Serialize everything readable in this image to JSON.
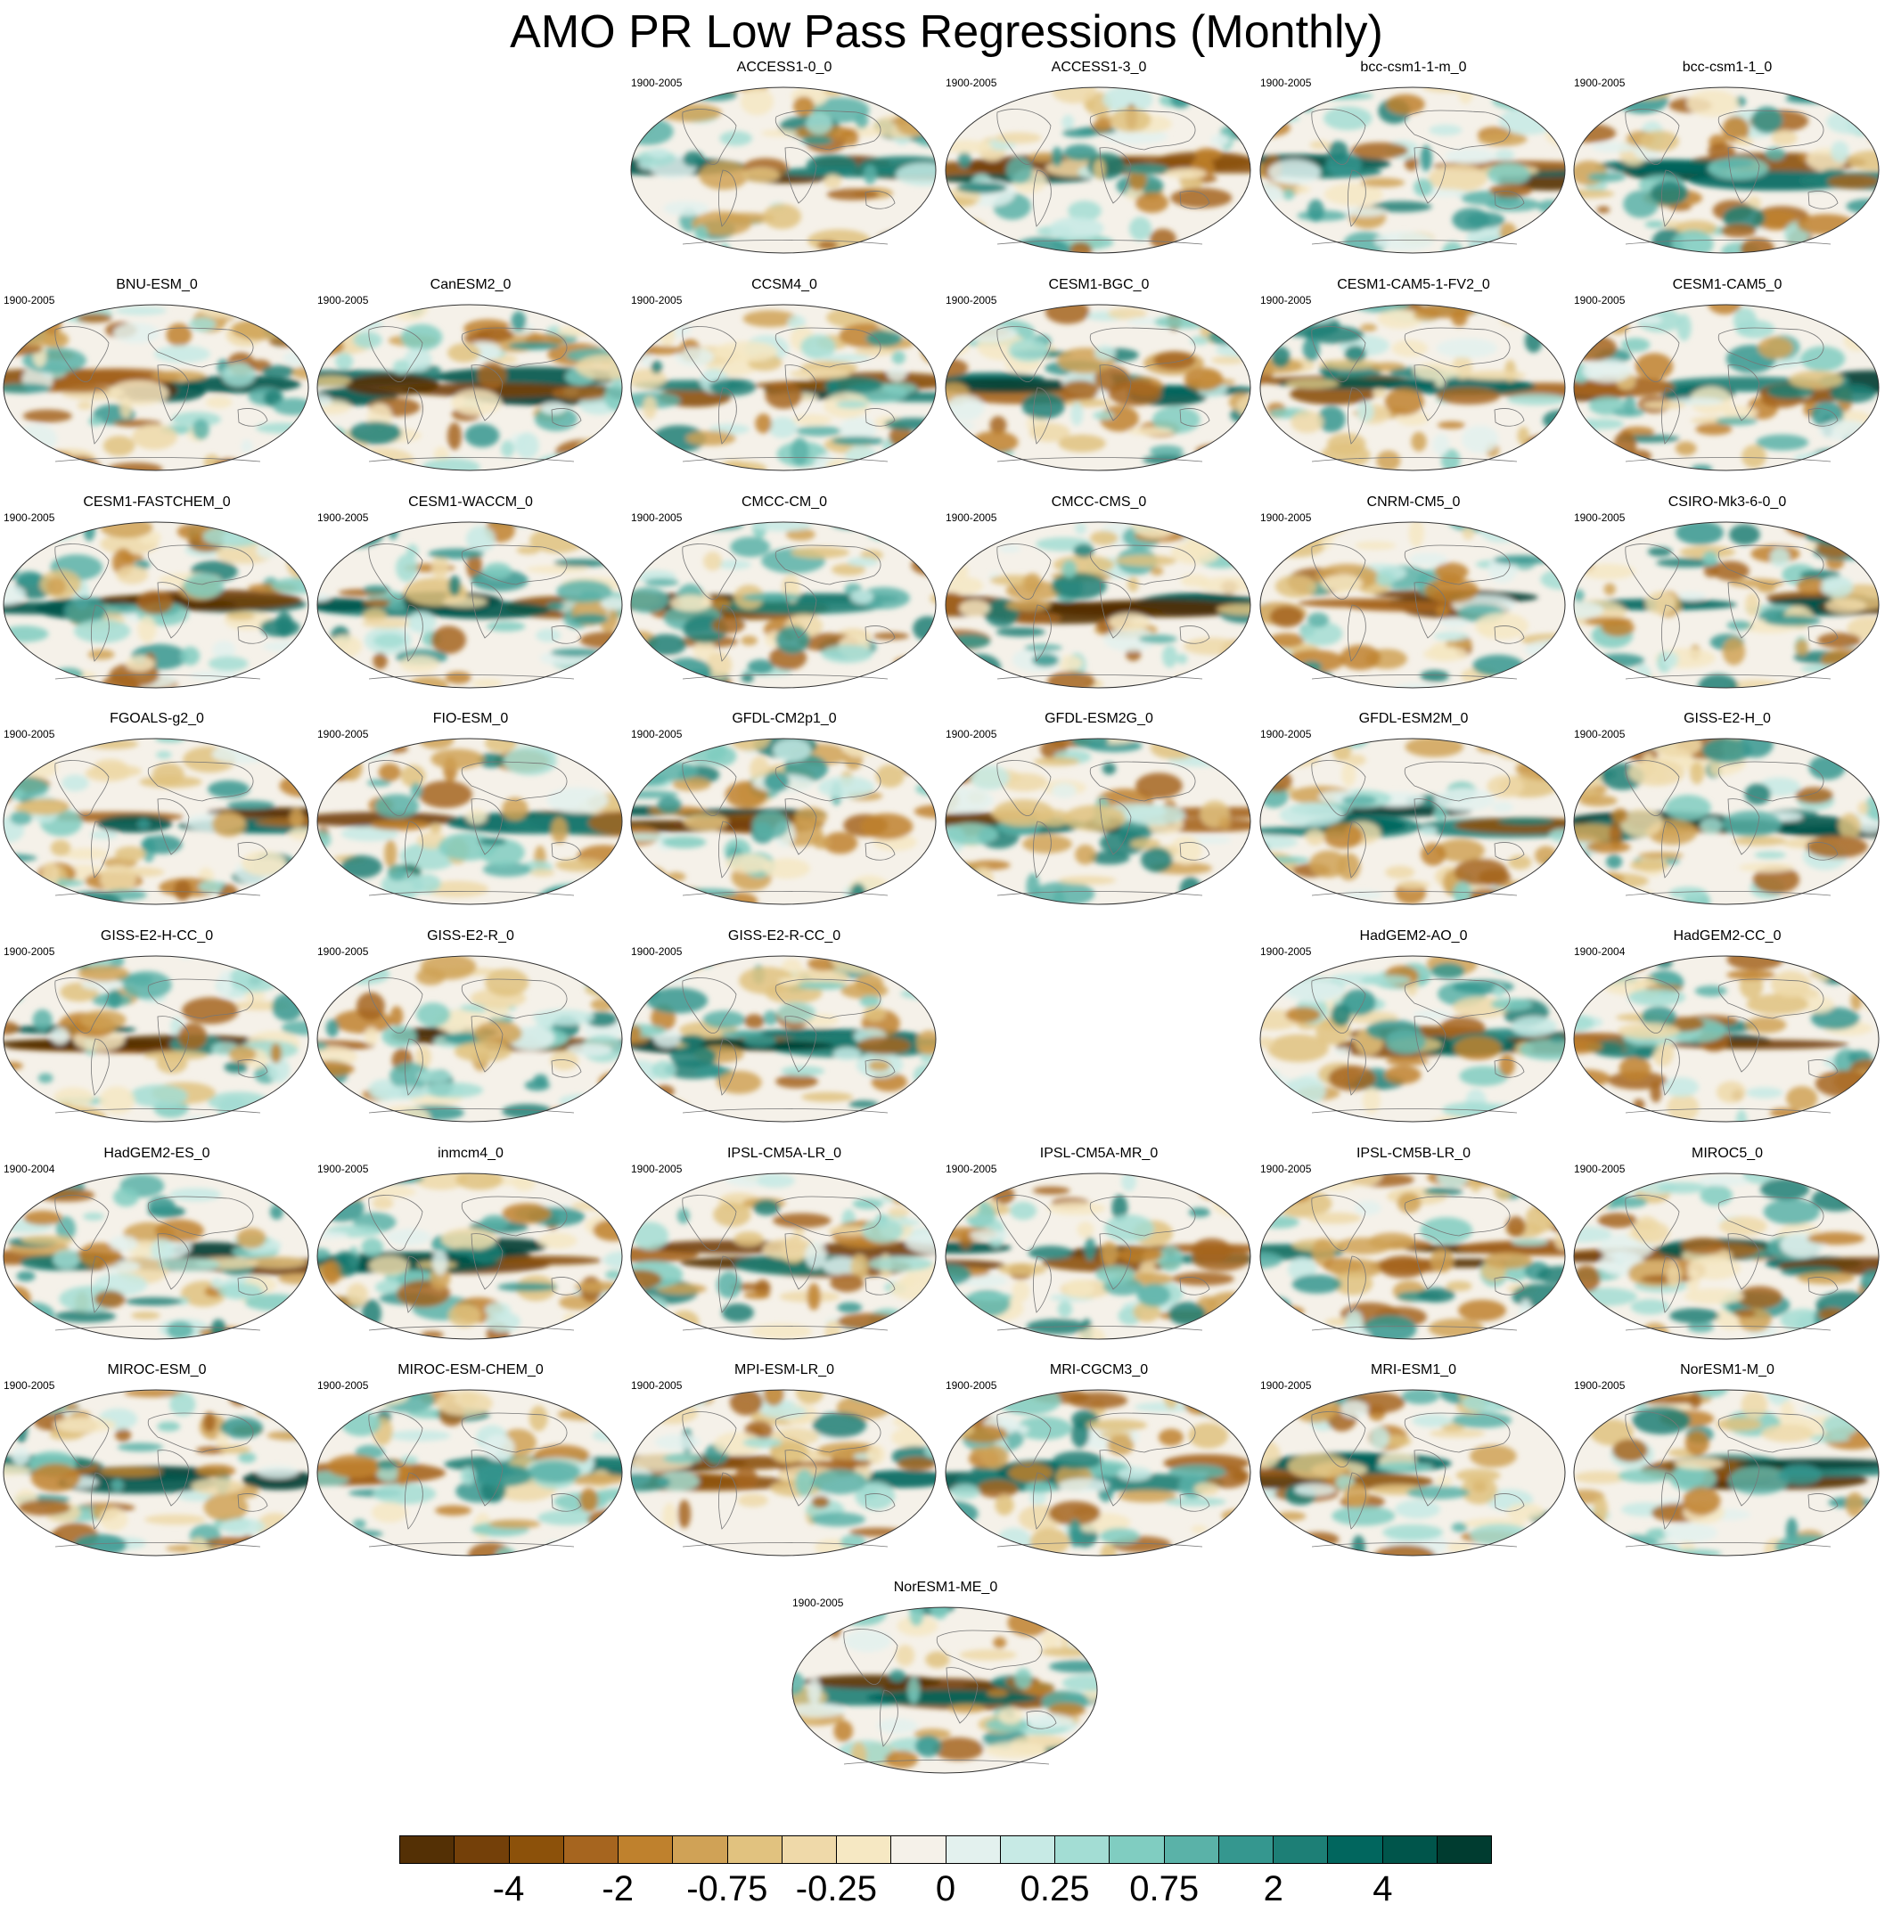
{
  "title": "AMO PR Low Pass Regressions (Monthly)",
  "colorbar": {
    "colors": [
      "#543005",
      "#744009",
      "#8c510a",
      "#a6651f",
      "#bf812d",
      "#d0a256",
      "#e1c27f",
      "#efd9a9",
      "#f6e8c3",
      "#f5f1e9",
      "#e3f1ee",
      "#c7eae5",
      "#a3ddd4",
      "#80cdc1",
      "#5ab2a8",
      "#35978f",
      "#1d7f76",
      "#01665e",
      "#00554b",
      "#003c30"
    ],
    "tick_labels": [
      "-4",
      "-2",
      "-0.75",
      "-0.25",
      "0",
      "0.25",
      "0.75",
      "2",
      "4"
    ]
  },
  "panels": [
    {
      "title": "ACCESS1-0_0",
      "years": "1900-2005"
    },
    {
      "title": "ACCESS1-3_0",
      "years": "1900-2005"
    },
    {
      "title": "bcc-csm1-1-m_0",
      "years": "1900-2005"
    },
    {
      "title": "bcc-csm1-1_0",
      "years": "1900-2005"
    },
    {
      "title": "BNU-ESM_0",
      "years": "1900-2005"
    },
    {
      "title": "CanESM2_0",
      "years": "1900-2005"
    },
    {
      "title": "CCSM4_0",
      "years": "1900-2005"
    },
    {
      "title": "CESM1-BGC_0",
      "years": "1900-2005"
    },
    {
      "title": "CESM1-CAM5-1-FV2_0",
      "years": "1900-2005"
    },
    {
      "title": "CESM1-CAM5_0",
      "years": "1900-2005"
    },
    {
      "title": "CESM1-FASTCHEM_0",
      "years": "1900-2005"
    },
    {
      "title": "CESM1-WACCM_0",
      "years": "1900-2005"
    },
    {
      "title": "CMCC-CM_0",
      "years": "1900-2005"
    },
    {
      "title": "CMCC-CMS_0",
      "years": "1900-2005"
    },
    {
      "title": "CNRM-CM5_0",
      "years": "1900-2005"
    },
    {
      "title": "CSIRO-Mk3-6-0_0",
      "years": "1900-2005"
    },
    {
      "title": "FGOALS-g2_0",
      "years": "1900-2005"
    },
    {
      "title": "FIO-ESM_0",
      "years": "1900-2005"
    },
    {
      "title": "GFDL-CM2p1_0",
      "years": "1900-2005"
    },
    {
      "title": "GFDL-ESM2G_0",
      "years": "1900-2005"
    },
    {
      "title": "GFDL-ESM2M_0",
      "years": "1900-2005"
    },
    {
      "title": "GISS-E2-H_0",
      "years": "1900-2005"
    },
    {
      "title": "GISS-E2-H-CC_0",
      "years": "1900-2005"
    },
    {
      "title": "GISS-E2-R_0",
      "years": "1900-2005"
    },
    {
      "title": "GISS-E2-R-CC_0",
      "years": "1900-2005"
    },
    {
      "title": "HadGEM2-AO_0",
      "years": "1900-2005"
    },
    {
      "title": "HadGEM2-CC_0",
      "years": "1900-2004"
    },
    {
      "title": "HadGEM2-ES_0",
      "years": "1900-2004"
    },
    {
      "title": "inmcm4_0",
      "years": "1900-2005"
    },
    {
      "title": "IPSL-CM5A-LR_0",
      "years": "1900-2005"
    },
    {
      "title": "IPSL-CM5A-MR_0",
      "years": "1900-2005"
    },
    {
      "title": "IPSL-CM5B-LR_0",
      "years": "1900-2005"
    },
    {
      "title": "MIROC5_0",
      "years": "1900-2005"
    },
    {
      "title": "MIROC-ESM_0",
      "years": "1900-2005"
    },
    {
      "title": "MIROC-ESM-CHEM_0",
      "years": "1900-2005"
    },
    {
      "title": "MPI-ESM-LR_0",
      "years": "1900-2005"
    },
    {
      "title": "MRI-CGCM3_0",
      "years": "1900-2005"
    },
    {
      "title": "MRI-ESM1_0",
      "years": "1900-2005"
    },
    {
      "title": "NorESM1-M_0",
      "years": "1900-2005"
    },
    {
      "title": "NorESM1-ME_0",
      "years": "1900-2005"
    }
  ]
}
